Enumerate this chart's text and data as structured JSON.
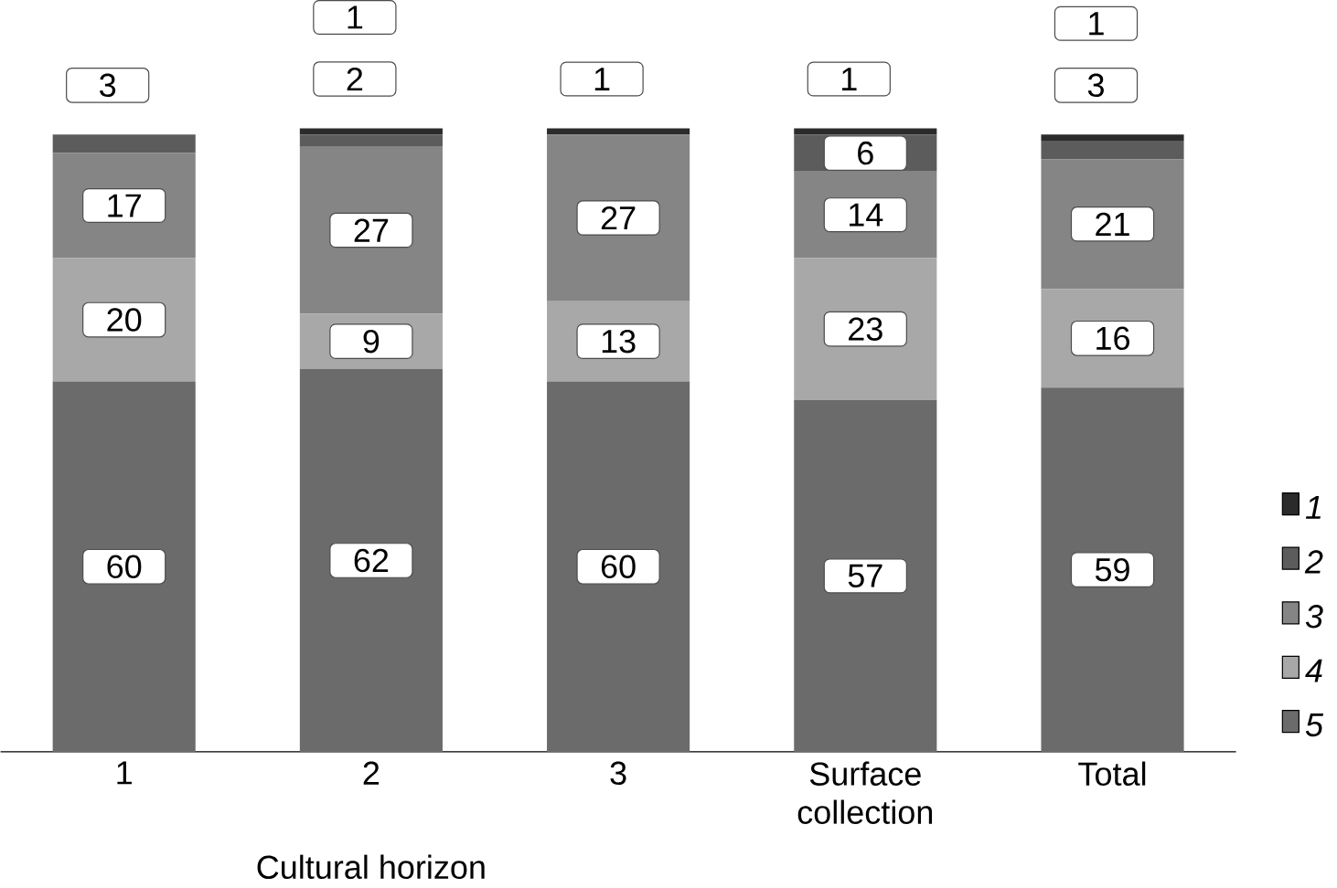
{
  "chart_data": {
    "type": "bar",
    "stacked": true,
    "xlabel": "Cultural horizon",
    "categories": [
      "1",
      "2",
      "3",
      "Surface collection",
      "Total"
    ],
    "series": [
      {
        "name": "5",
        "color": "#6b6b6b",
        "values": [
          60,
          62,
          60,
          57,
          59
        ]
      },
      {
        "name": "4",
        "color": "#a8a8a8",
        "values": [
          20,
          9,
          13,
          23,
          16
        ]
      },
      {
        "name": "3",
        "color": "#858585",
        "values": [
          17,
          27,
          27,
          14,
          21
        ]
      },
      {
        "name": "2",
        "color": "#5c5c5c",
        "values": [
          3,
          2,
          null,
          6,
          3
        ]
      },
      {
        "name": "1",
        "color": "#2b2b2b",
        "values": [
          null,
          1,
          1,
          1,
          1
        ]
      }
    ],
    "data_labels": true,
    "legend": "right",
    "grid": false
  }
}
